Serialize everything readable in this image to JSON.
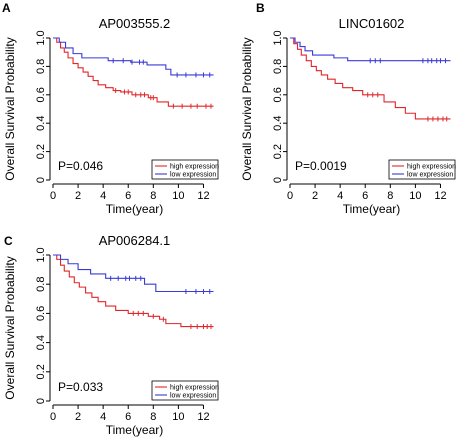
{
  "colors": {
    "high": "#e0262a",
    "low": "#3a3ad6"
  },
  "chart_data": [
    {
      "type": "line",
      "panel_label": "A",
      "title": "AP003555.2",
      "xlabel": "Time(year)",
      "ylabel": "Overall Survival Probability",
      "xlim": [
        0,
        13
      ],
      "ylim": [
        0,
        1.0
      ],
      "xticks": [
        0,
        2,
        4,
        6,
        8,
        10,
        12
      ],
      "yticks": [
        0.0,
        0.2,
        0.4,
        0.6,
        0.8,
        1.0
      ],
      "ytick_labels": [
        "0",
        "0.2",
        "0.4",
        "0.6",
        "0.8",
        "1.0"
      ],
      "pvalue_text": "P=0.046",
      "legend_position": "bottom-right",
      "series": [
        {
          "name": "high expression",
          "color_key": "high",
          "steps": [
            [
              0,
              1.0
            ],
            [
              0.3,
              0.97
            ],
            [
              0.6,
              0.93
            ],
            [
              0.9,
              0.9
            ],
            [
              1.2,
              0.86
            ],
            [
              1.6,
              0.82
            ],
            [
              2.0,
              0.79
            ],
            [
              2.4,
              0.76
            ],
            [
              2.8,
              0.73
            ],
            [
              3.2,
              0.7
            ],
            [
              3.6,
              0.67
            ],
            [
              4.2,
              0.65
            ],
            [
              4.8,
              0.63
            ],
            [
              5.4,
              0.62
            ],
            [
              6.3,
              0.6
            ],
            [
              7.6,
              0.58
            ],
            [
              8.3,
              0.55
            ],
            [
              9.2,
              0.52
            ]
          ],
          "end": 12.8,
          "censors": [
            5.0,
            5.7,
            6.0,
            6.6,
            7.0,
            7.3,
            7.8,
            8.0,
            9.6,
            10.3,
            11.0,
            11.5,
            12.2,
            12.6
          ]
        },
        {
          "name": "low expression",
          "color_key": "low",
          "steps": [
            [
              0,
              1.0
            ],
            [
              0.5,
              0.97
            ],
            [
              1.0,
              0.93
            ],
            [
              1.6,
              0.89
            ],
            [
              2.3,
              0.86
            ],
            [
              4.4,
              0.84
            ],
            [
              6.2,
              0.83
            ],
            [
              7.5,
              0.81
            ],
            [
              9.0,
              0.78
            ],
            [
              9.4,
              0.74
            ]
          ],
          "end": 12.8,
          "censors": [
            4.8,
            5.6,
            6.3,
            6.9,
            7.2,
            9.9,
            10.6,
            11.4,
            12.0,
            12.5
          ]
        }
      ]
    },
    {
      "type": "line",
      "panel_label": "B",
      "title": "LINC01602",
      "xlabel": "Time(year)",
      "ylabel": "Overall Survival Probability",
      "xlim": [
        0,
        13
      ],
      "ylim": [
        0,
        1.0
      ],
      "xticks": [
        0,
        2,
        4,
        6,
        8,
        10,
        12
      ],
      "yticks": [
        0.0,
        0.2,
        0.4,
        0.6,
        0.8,
        1.0
      ],
      "ytick_labels": [
        "0",
        "0.2",
        "0.4",
        "0.6",
        "0.8",
        "1.0"
      ],
      "pvalue_text": "P=0.0019",
      "legend_position": "bottom-right",
      "series": [
        {
          "name": "high expression",
          "color_key": "high",
          "steps": [
            [
              0,
              1.0
            ],
            [
              0.3,
              0.96
            ],
            [
              0.6,
              0.92
            ],
            [
              0.9,
              0.88
            ],
            [
              1.3,
              0.84
            ],
            [
              1.7,
              0.8
            ],
            [
              2.1,
              0.77
            ],
            [
              2.5,
              0.74
            ],
            [
              3.0,
              0.71
            ],
            [
              3.6,
              0.68
            ],
            [
              4.2,
              0.65
            ],
            [
              5.0,
              0.63
            ],
            [
              5.8,
              0.6
            ],
            [
              7.5,
              0.55
            ],
            [
              8.4,
              0.51
            ],
            [
              9.2,
              0.47
            ],
            [
              10.0,
              0.43
            ]
          ],
          "end": 12.8,
          "censors": [
            6.2,
            6.6,
            7.0,
            11.0,
            11.4,
            11.8,
            12.2,
            12.5
          ]
        },
        {
          "name": "low expression",
          "color_key": "low",
          "steps": [
            [
              0,
              1.0
            ],
            [
              0.4,
              0.97
            ],
            [
              0.8,
              0.94
            ],
            [
              1.2,
              0.91
            ],
            [
              1.8,
              0.88
            ],
            [
              3.5,
              0.86
            ],
            [
              4.6,
              0.84
            ]
          ],
          "end": 12.8,
          "censors": [
            6.4,
            6.8,
            7.2,
            10.6,
            11.0,
            11.3,
            11.7,
            12.0,
            12.4
          ]
        }
      ]
    },
    {
      "type": "line",
      "panel_label": "C",
      "title": "AP006284.1",
      "xlabel": "Time(year)",
      "ylabel": "Overall Survival Probability",
      "xlim": [
        0,
        13
      ],
      "ylim": [
        0,
        1.0
      ],
      "xticks": [
        0,
        2,
        4,
        6,
        8,
        10,
        12
      ],
      "yticks": [
        0.0,
        0.2,
        0.4,
        0.6,
        0.8,
        1.0
      ],
      "ytick_labels": [
        "0",
        "0.2",
        "0.4",
        "0.6",
        "0.8",
        "1.0"
      ],
      "pvalue_text": "P=0.033",
      "legend_position": "bottom-right",
      "series": [
        {
          "name": "high expression",
          "color_key": "high",
          "steps": [
            [
              0,
              1.0
            ],
            [
              0.3,
              0.97
            ],
            [
              0.6,
              0.93
            ],
            [
              0.9,
              0.89
            ],
            [
              1.3,
              0.85
            ],
            [
              1.7,
              0.81
            ],
            [
              2.1,
              0.78
            ],
            [
              2.6,
              0.74
            ],
            [
              3.1,
              0.71
            ],
            [
              3.6,
              0.68
            ],
            [
              4.2,
              0.65
            ],
            [
              5.0,
              0.62
            ],
            [
              6.0,
              0.6
            ],
            [
              7.6,
              0.58
            ],
            [
              8.5,
              0.56
            ],
            [
              9.0,
              0.53
            ],
            [
              10.2,
              0.51
            ]
          ],
          "end": 12.8,
          "censors": [
            6.4,
            6.8,
            7.2,
            8.0,
            8.8,
            11.0,
            11.5,
            12.0,
            12.3,
            12.6
          ]
        },
        {
          "name": "low expression",
          "color_key": "low",
          "steps": [
            [
              0,
              1.0
            ],
            [
              0.6,
              0.97
            ],
            [
              1.2,
              0.94
            ],
            [
              2.0,
              0.9
            ],
            [
              3.0,
              0.87
            ],
            [
              4.2,
              0.84
            ],
            [
              7.3,
              0.8
            ],
            [
              8.2,
              0.75
            ]
          ],
          "end": 12.8,
          "censors": [
            4.6,
            5.2,
            5.8,
            6.1,
            6.6,
            7.0,
            10.6,
            11.4,
            12.0,
            12.5
          ]
        }
      ]
    }
  ]
}
